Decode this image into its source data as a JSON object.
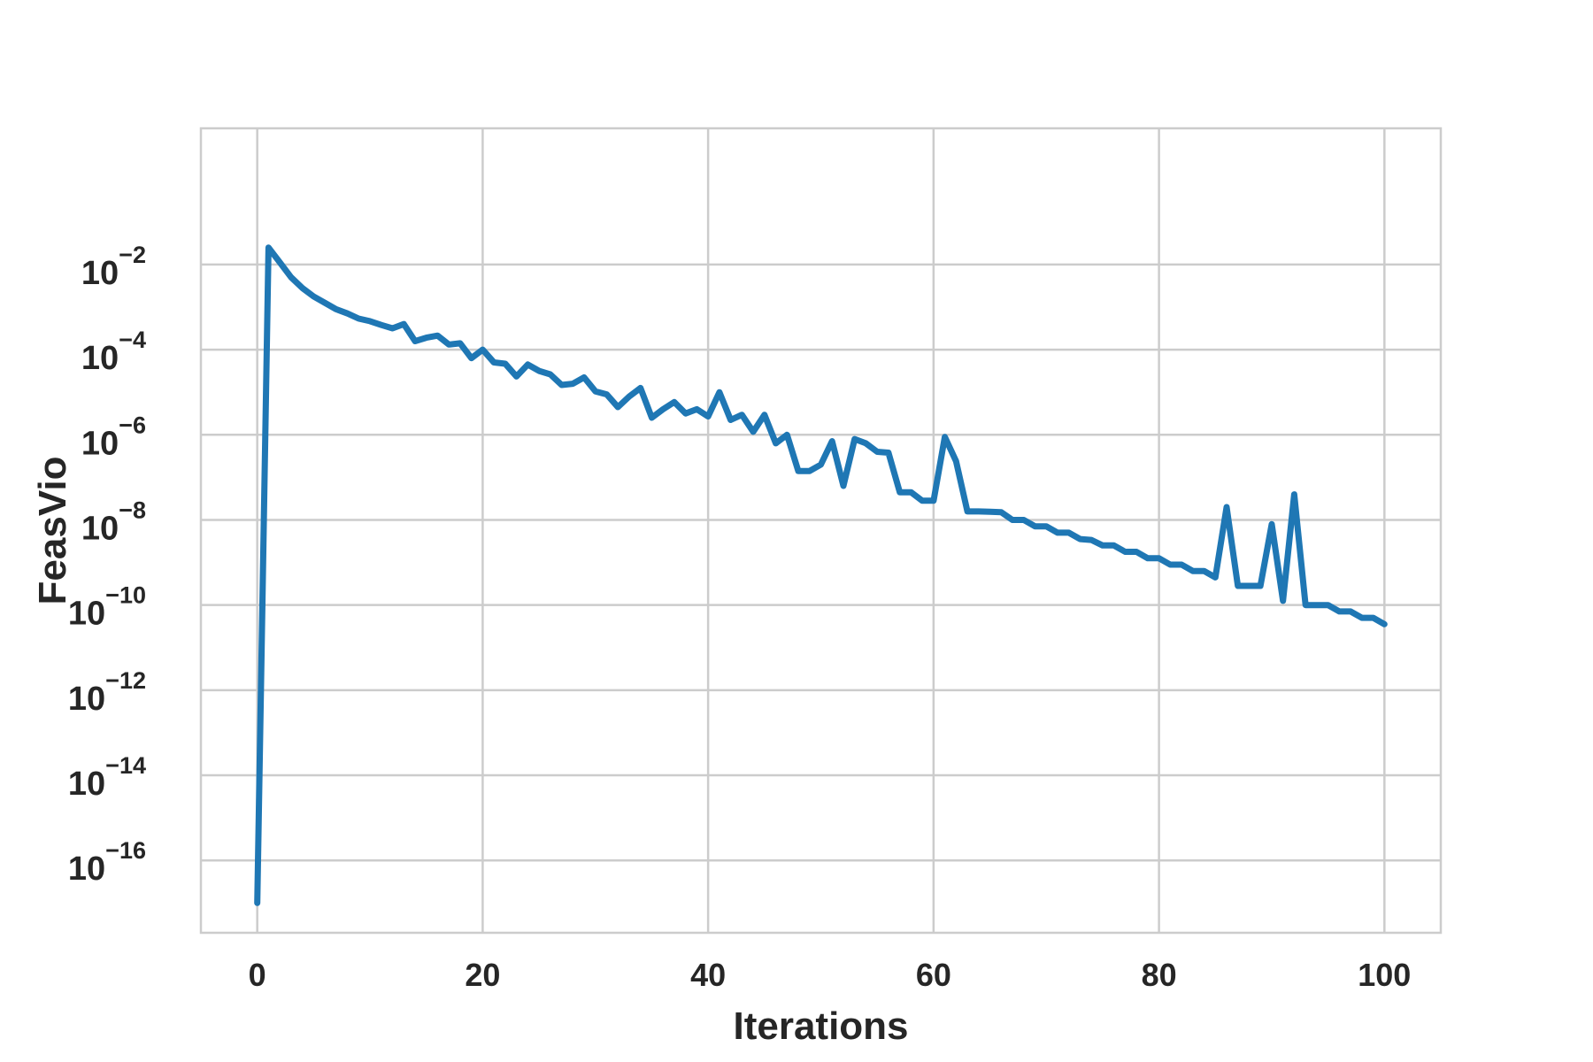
{
  "chart_data": {
    "type": "line",
    "title": "",
    "xlabel": "Iterations",
    "ylabel": "FeasVio",
    "xlim": [
      -5,
      105
    ],
    "ylim_log10": [
      -17.7,
      1.2
    ],
    "y_scale": "log",
    "grid": true,
    "legend": "none",
    "x_ticks": [
      {
        "value": 0,
        "label": "0"
      },
      {
        "value": 20,
        "label": "20"
      },
      {
        "value": 40,
        "label": "40"
      },
      {
        "value": 60,
        "label": "60"
      },
      {
        "value": 80,
        "label": "80"
      },
      {
        "value": 100,
        "label": "100"
      }
    ],
    "y_ticks": [
      {
        "exp": -2,
        "base": "10",
        "sup": "−2"
      },
      {
        "exp": -4,
        "base": "10",
        "sup": "−4"
      },
      {
        "exp": -6,
        "base": "10",
        "sup": "−6"
      },
      {
        "exp": -8,
        "base": "10",
        "sup": "−8"
      },
      {
        "exp": -10,
        "base": "10",
        "sup": "−10"
      },
      {
        "exp": -12,
        "base": "10",
        "sup": "−12"
      },
      {
        "exp": -14,
        "base": "10",
        "sup": "−14"
      },
      {
        "exp": -16,
        "base": "10",
        "sup": "−16"
      }
    ],
    "series": [
      {
        "color": "#1f77b4",
        "x": [
          0,
          1,
          2,
          3,
          4,
          5,
          6,
          7,
          8,
          9,
          10,
          11,
          12,
          13,
          14,
          15,
          16,
          17,
          18,
          19,
          20,
          21,
          22,
          23,
          24,
          25,
          26,
          27,
          28,
          29,
          30,
          31,
          32,
          33,
          34,
          35,
          36,
          37,
          38,
          39,
          40,
          41,
          42,
          43,
          44,
          45,
          46,
          47,
          48,
          49,
          50,
          51,
          52,
          53,
          54,
          55,
          56,
          57,
          58,
          59,
          60,
          61,
          62,
          63,
          64,
          65,
          66,
          67,
          68,
          69,
          70,
          71,
          72,
          73,
          74,
          75,
          76,
          77,
          78,
          79,
          80,
          81,
          82,
          83,
          84,
          85,
          86,
          87,
          88,
          89,
          90,
          91,
          92,
          93,
          94,
          95,
          96,
          97,
          98,
          99,
          100
        ],
        "log10_y": [
          -17.0,
          -1.6,
          -1.95,
          -2.3,
          -2.55,
          -2.75,
          -2.9,
          -3.05,
          -3.15,
          -3.27,
          -3.33,
          -3.42,
          -3.5,
          -3.4,
          -3.8,
          -3.72,
          -3.67,
          -3.88,
          -3.85,
          -4.2,
          -4.0,
          -4.3,
          -4.33,
          -4.63,
          -4.35,
          -4.5,
          -4.58,
          -4.83,
          -4.8,
          -4.65,
          -4.98,
          -5.05,
          -5.35,
          -5.1,
          -4.9,
          -5.6,
          -5.4,
          -5.23,
          -5.5,
          -5.4,
          -5.57,
          -5.0,
          -5.65,
          -5.53,
          -5.93,
          -5.53,
          -6.2,
          -6.0,
          -6.85,
          -6.85,
          -6.7,
          -6.15,
          -7.2,
          -6.1,
          -6.2,
          -6.4,
          -6.42,
          -7.35,
          -7.35,
          -7.55,
          -7.55,
          -6.05,
          -6.62,
          -7.8,
          -7.8,
          -7.81,
          -7.82,
          -8.0,
          -8.0,
          -8.15,
          -8.15,
          -8.3,
          -8.3,
          -8.45,
          -8.47,
          -8.6,
          -8.6,
          -8.75,
          -8.75,
          -8.9,
          -8.9,
          -9.05,
          -9.05,
          -9.2,
          -9.2,
          -9.35,
          -7.7,
          -9.55,
          -9.55,
          -9.55,
          -8.1,
          -9.9,
          -7.4,
          -10.0,
          -10.0,
          -10.0,
          -10.15,
          -10.15,
          -10.3,
          -10.3,
          -10.45
        ]
      }
    ]
  }
}
